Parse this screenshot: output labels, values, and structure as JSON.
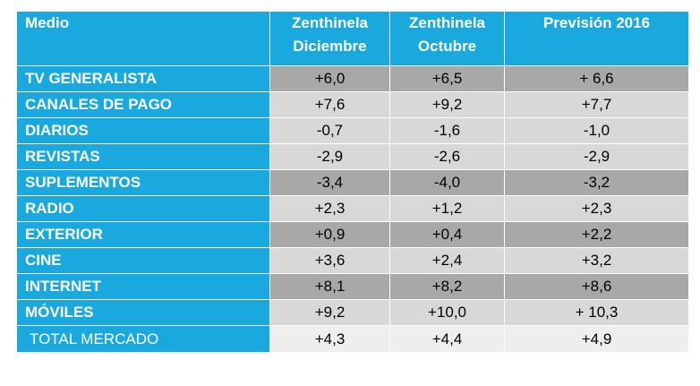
{
  "headers": {
    "medio": "Medio",
    "col1": [
      "Zenthinela",
      "Diciembre"
    ],
    "col2": [
      "Zenthinela",
      "Octubre"
    ],
    "col3": "Previsión 2016"
  },
  "rows": [
    {
      "medio": "TV GENERALISTA",
      "v1": "+6,0",
      "v2": "+6,5",
      "v3": "+ 6,6"
    },
    {
      "medio": "CANALES DE PAGO",
      "v1": "+7,6",
      "v2": "+9,2",
      "v3": "+7,7"
    },
    {
      "medio": "DIARIOS",
      "v1": "-0,7",
      "v2": "-1,6",
      "v3": "-1,0"
    },
    {
      "medio": "REVISTAS",
      "v1": "-2,9",
      "v2": "-2,6",
      "v3": "-2,9"
    },
    {
      "medio": "SUPLEMENTOS",
      "v1": "-3,4",
      "v2": "-4,0",
      "v3": "-3,2"
    },
    {
      "medio": "RADIO",
      "v1": "+2,3",
      "v2": "+1,2",
      "v3": "+2,3"
    },
    {
      "medio": "EXTERIOR",
      "v1": "+0,9",
      "v2": "+0,4",
      "v3": "+2,2"
    },
    {
      "medio": "CINE",
      "v1": "+3,6",
      "v2": "+2,4",
      "v3": "+3,2"
    },
    {
      "medio": "INTERNET",
      "v1": "+8,1",
      "v2": "+8,2",
      "v3": "+8,6"
    },
    {
      "medio": "MÓVILES",
      "v1": "+9,2",
      "v2": "+10,0",
      "v3": "+ 10,3"
    },
    {
      "medio": "TOTAL MERCADO",
      "v1": "+4,3",
      "v2": "+4,4",
      "v3": "+4,9"
    }
  ],
  "colors": {
    "header_blue": "#19a9df",
    "row_dark": "#a8a8a8",
    "row_light": "#d8d8d8",
    "row_total": "#eeeeee"
  }
}
